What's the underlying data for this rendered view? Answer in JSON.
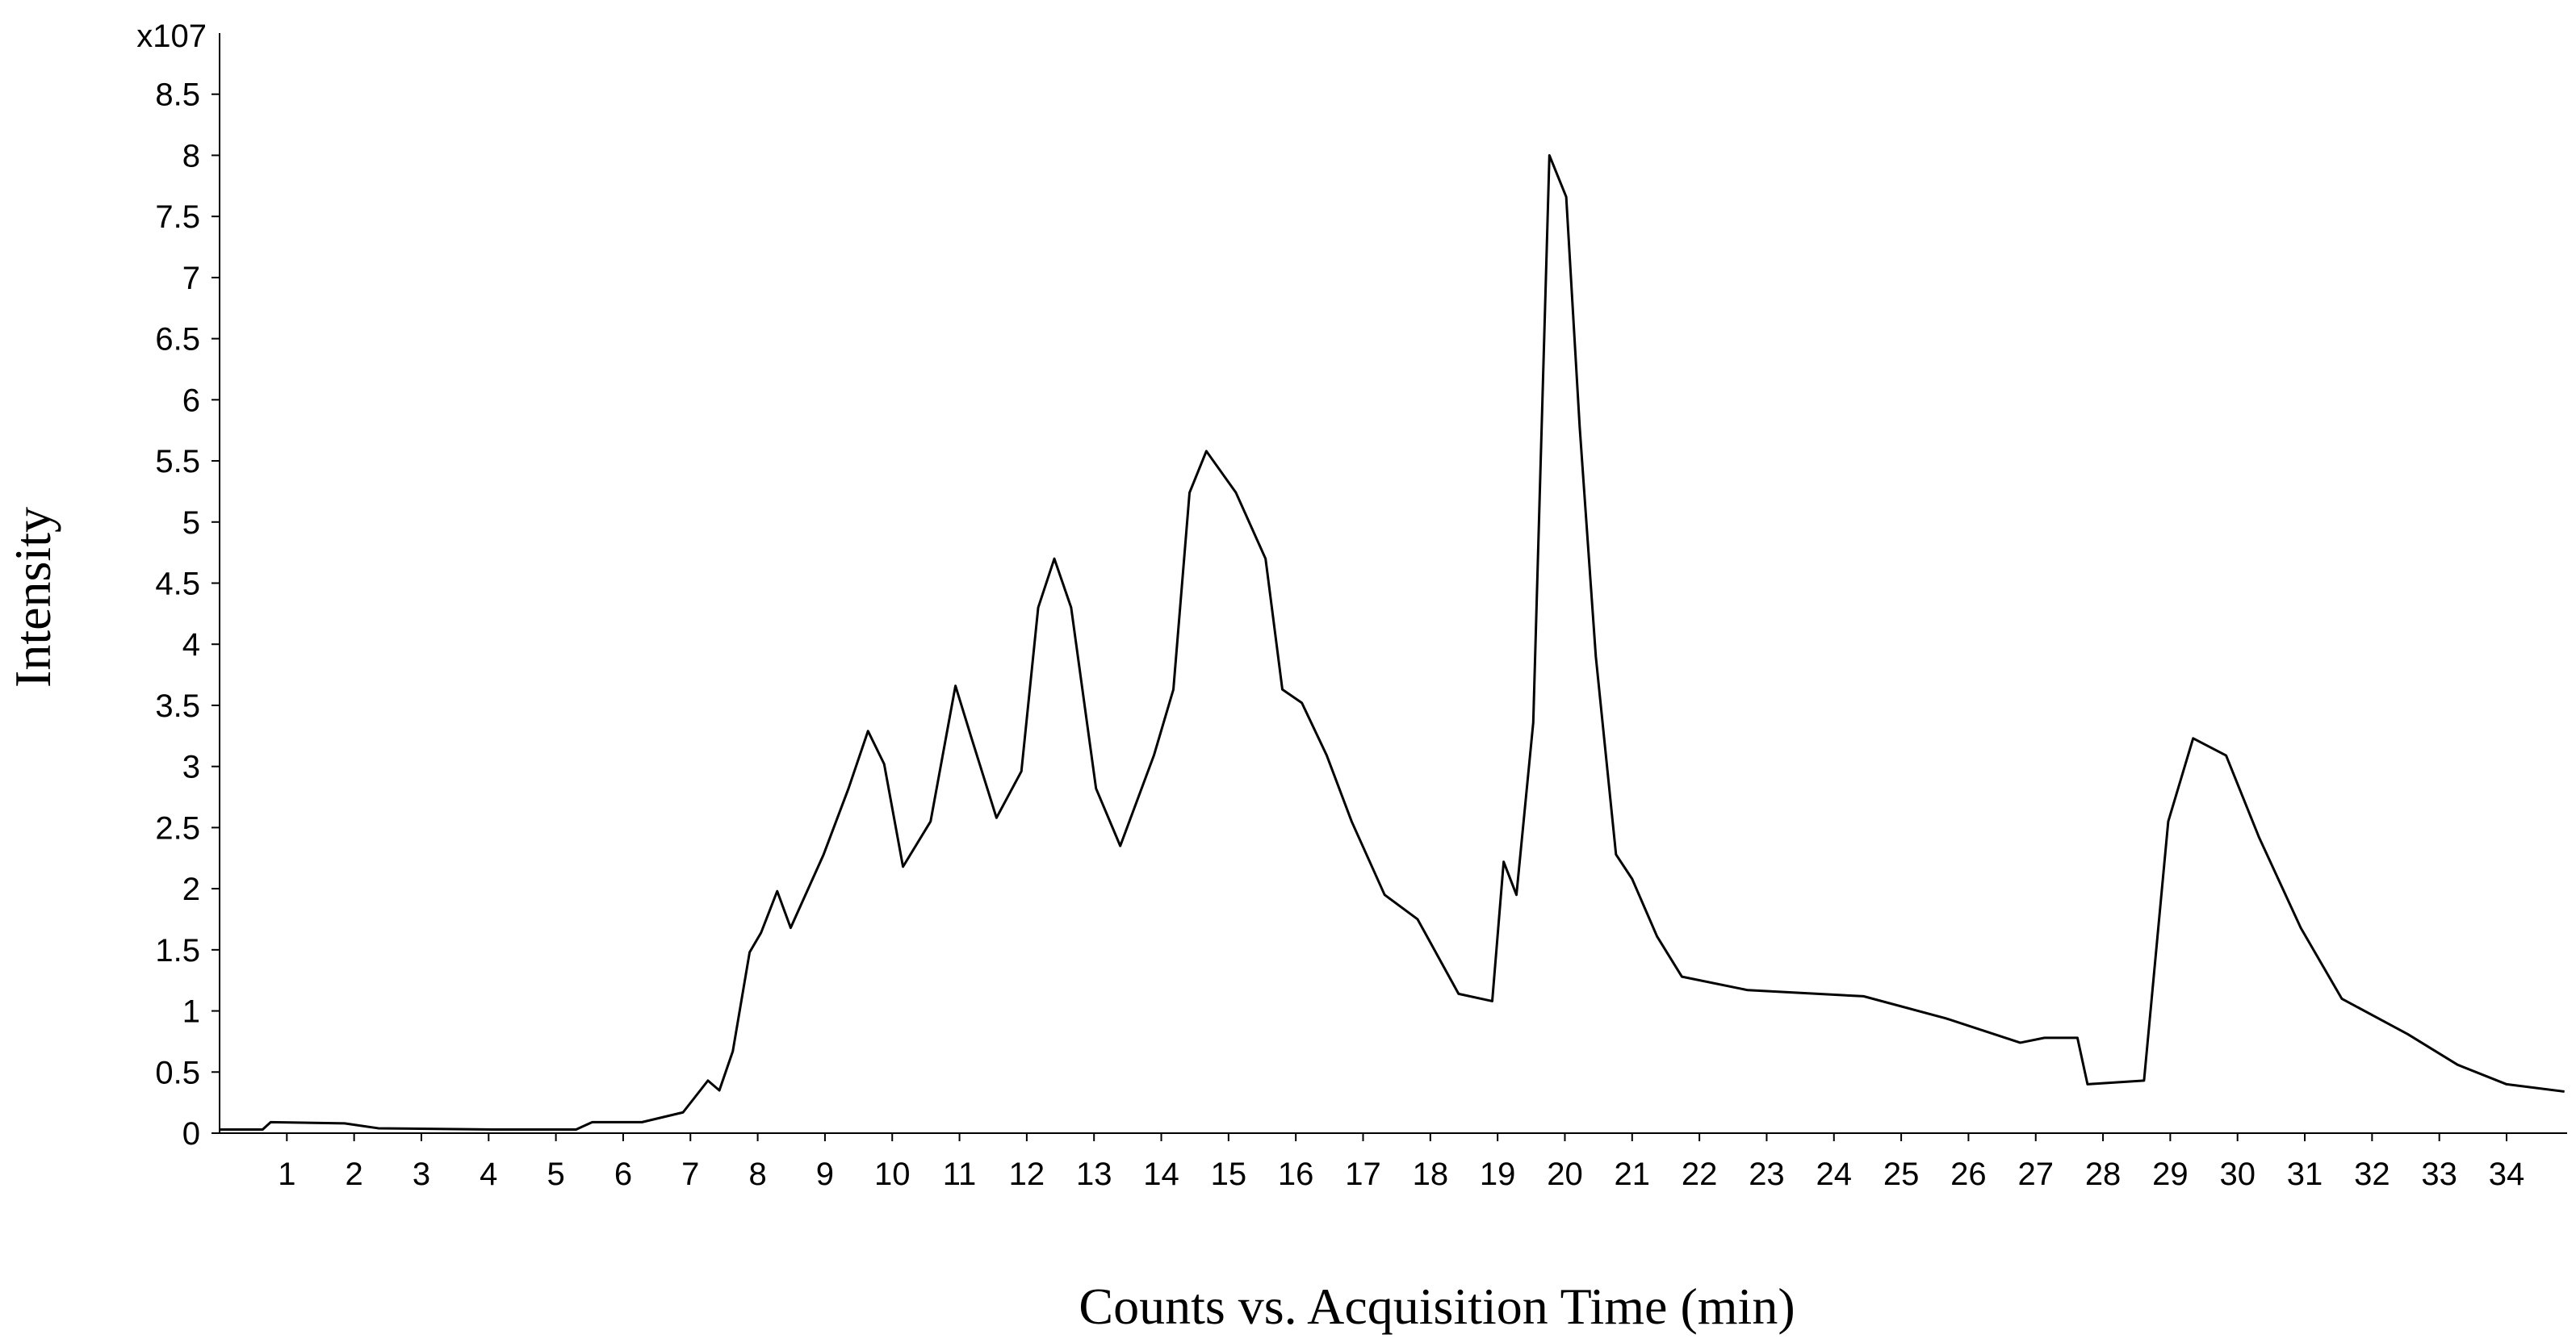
{
  "chart_data": {
    "type": "line",
    "y_axis_multiplier": "x107",
    "ylabel": "Intensity",
    "xlabel": "Counts vs. Acquisition Time (min)",
    "xlim": [
      0,
      34.9
    ],
    "ylim": [
      0,
      9
    ],
    "xticks": [
      1,
      2,
      3,
      4,
      5,
      6,
      7,
      8,
      9,
      10,
      11,
      12,
      13,
      14,
      15,
      16,
      17,
      18,
      19,
      20,
      21,
      22,
      23,
      24,
      25,
      26,
      27,
      28,
      29,
      30,
      31,
      32,
      33,
      34
    ],
    "yticks": [
      0,
      0.5,
      1,
      1.5,
      2,
      2.5,
      3,
      3.5,
      4,
      4.5,
      5,
      5.5,
      6,
      6.5,
      7,
      7.5,
      8,
      8.5
    ],
    "color": "#000000",
    "x": [
      0,
      0.64,
      0.76,
      1.86,
      2.36,
      4.07,
      5.3,
      5.54,
      6.28,
      6.89,
      7.26,
      7.43,
      7.63,
      7.88,
      8.05,
      8.29,
      8.49,
      8.98,
      9.35,
      9.64,
      9.88,
      10.16,
      10.57,
      10.94,
      11.18,
      11.55,
      11.92,
      12.17,
      12.41,
      12.66,
      13.03,
      13.39,
      13.89,
      14.18,
      14.42,
      14.67,
      15.11,
      15.55,
      15.8,
      16.09,
      16.46,
      16.83,
      17.32,
      17.81,
      18.42,
      18.92,
      19.09,
      19.28,
      19.53,
      19.77,
      20.02,
      20.22,
      20.46,
      20.76,
      21.0,
      21.37,
      21.74,
      22.72,
      24.44,
      25.66,
      26.77,
      27.13,
      27.62,
      27.77,
      28.61,
      28.97,
      29.34,
      29.83,
      30.32,
      30.94,
      31.55,
      32.53,
      33.27,
      34.0,
      34.86
    ],
    "values": [
      0.03,
      0.03,
      0.09,
      0.08,
      0.04,
      0.03,
      0.03,
      0.09,
      0.09,
      0.17,
      0.43,
      0.35,
      0.67,
      1.48,
      1.64,
      1.98,
      1.68,
      2.28,
      2.82,
      3.29,
      3.02,
      2.18,
      2.55,
      3.66,
      3.23,
      2.58,
      2.96,
      4.3,
      4.7,
      4.3,
      2.82,
      2.35,
      3.09,
      3.63,
      5.24,
      5.58,
      5.24,
      4.7,
      3.63,
      3.52,
      3.09,
      2.55,
      1.95,
      1.75,
      1.14,
      1.08,
      2.22,
      1.95,
      3.36,
      8.0,
      7.66,
      5.78,
      3.9,
      2.28,
      2.08,
      1.61,
      1.28,
      1.17,
      1.12,
      0.94,
      0.74,
      0.78,
      0.78,
      0.4,
      0.43,
      2.55,
      3.23,
      3.09,
      2.42,
      1.68,
      1.1,
      0.81,
      0.56,
      0.4,
      0.34
    ]
  }
}
